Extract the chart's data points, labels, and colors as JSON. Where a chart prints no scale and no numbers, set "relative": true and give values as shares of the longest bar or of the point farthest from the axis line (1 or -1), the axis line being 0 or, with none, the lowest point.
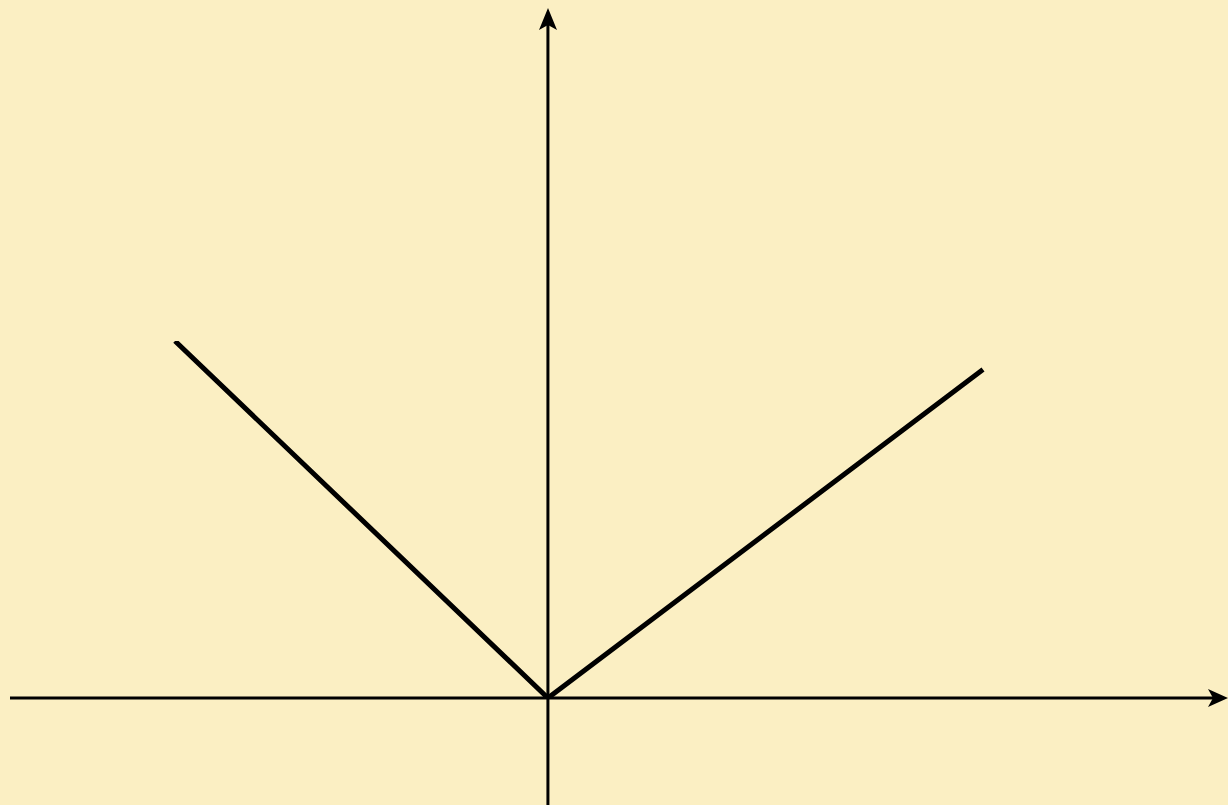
{
  "chart_data": {
    "type": "line",
    "relative": true,
    "categories": [
      null,
      null,
      null,
      null,
      null,
      null,
      null,
      null,
      null,
      null,
      null,
      null,
      null,
      null
    ],
    "series": [
      {
        "color": "#000000",
        "values": [
          1,
          null,
          null,
          null,
          null,
          null,
          0,
          null,
          null,
          null,
          null,
          null,
          null,
          0.92
        ]
      }
    ]
  }
}
